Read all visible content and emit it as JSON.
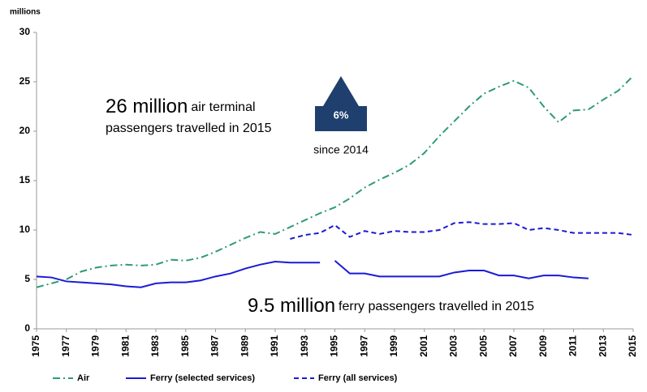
{
  "chart_data": {
    "type": "line",
    "y_unit_label": "millions",
    "xlim": [
      1975,
      2015
    ],
    "xticks": [
      1975,
      1977,
      1979,
      1981,
      1983,
      1985,
      1987,
      1989,
      1991,
      1993,
      1995,
      1997,
      1999,
      2001,
      2003,
      2005,
      2007,
      2009,
      2011,
      2013,
      2015
    ],
    "ylim": [
      0,
      30
    ],
    "yticks": [
      0,
      5,
      10,
      15,
      20,
      25,
      30
    ],
    "series": [
      {
        "name": "Air",
        "color": "#2e9a78",
        "dash": "dashdot",
        "x": [
          1975,
          1976,
          1977,
          1978,
          1979,
          1980,
          1981,
          1982,
          1983,
          1984,
          1985,
          1986,
          1987,
          1988,
          1989,
          1990,
          1991,
          1992,
          1993,
          1994,
          1995,
          1996,
          1997,
          1998,
          1999,
          2000,
          2001,
          2002,
          2003,
          2004,
          2005,
          2006,
          2007,
          2008,
          2009,
          2010,
          2011,
          2012,
          2013,
          2014,
          2015
        ],
        "values": [
          4.2,
          4.6,
          5.0,
          5.8,
          6.2,
          6.4,
          6.5,
          6.4,
          6.5,
          7.0,
          6.9,
          7.2,
          7.8,
          8.5,
          9.2,
          9.8,
          9.6,
          10.3,
          11.0,
          11.7,
          12.3,
          13.2,
          14.3,
          15.1,
          15.8,
          16.6,
          17.8,
          19.5,
          21.0,
          22.5,
          23.8,
          24.5,
          25.1,
          24.4,
          22.5,
          20.9,
          22.1,
          22.2,
          23.2,
          24.1,
          25.6
        ]
      },
      {
        "name": "Ferry (selected services)",
        "color": "#1a1ad8",
        "dash": "solid",
        "x": [
          1975,
          1976,
          1977,
          1978,
          1979,
          1980,
          1981,
          1982,
          1983,
          1984,
          1985,
          1986,
          1987,
          1988,
          1989,
          1990,
          1991,
          1992,
          1993,
          1994,
          1994.5,
          1995,
          1996,
          1997,
          1998,
          1999,
          2000,
          2001,
          2002,
          2003,
          2004,
          2005,
          2006,
          2007,
          2008,
          2009,
          2010,
          2011,
          2012
        ],
        "values": [
          5.3,
          5.2,
          4.8,
          4.7,
          4.6,
          4.5,
          4.3,
          4.2,
          4.6,
          4.7,
          4.7,
          4.9,
          5.3,
          5.6,
          6.1,
          6.5,
          6.8,
          6.7,
          6.7,
          6.7,
          null,
          6.9,
          5.6,
          5.6,
          5.3,
          5.3,
          5.3,
          5.3,
          5.3,
          5.7,
          5.9,
          5.9,
          5.4,
          5.4,
          5.1,
          5.4,
          5.4,
          5.2,
          5.1
        ]
      },
      {
        "name": "Ferry (all services)",
        "color": "#1a1ad8",
        "dash": "dashed",
        "x": [
          1992,
          1993,
          1994,
          1995,
          1996,
          1997,
          1998,
          1999,
          2000,
          2001,
          2002,
          2003,
          2004,
          2005,
          2006,
          2007,
          2008,
          2009,
          2010,
          2011,
          2012,
          2013,
          2014,
          2015
        ],
        "values": [
          9.1,
          9.5,
          9.7,
          10.5,
          9.3,
          9.9,
          9.6,
          9.9,
          9.8,
          9.8,
          10.0,
          10.7,
          10.8,
          10.6,
          10.6,
          10.7,
          10.0,
          10.2,
          10.0,
          9.7,
          9.7,
          9.7,
          9.7,
          9.5
        ]
      }
    ],
    "annotations": {
      "air_big": "26 million",
      "air_small": "air terminal",
      "air_line2": "passengers travelled in 2015",
      "arrow_label": "6%",
      "since": "since 2014",
      "ferry_big": "9.5 million",
      "ferry_small": "ferry passengers travelled in 2015"
    },
    "legend": "bottom"
  }
}
